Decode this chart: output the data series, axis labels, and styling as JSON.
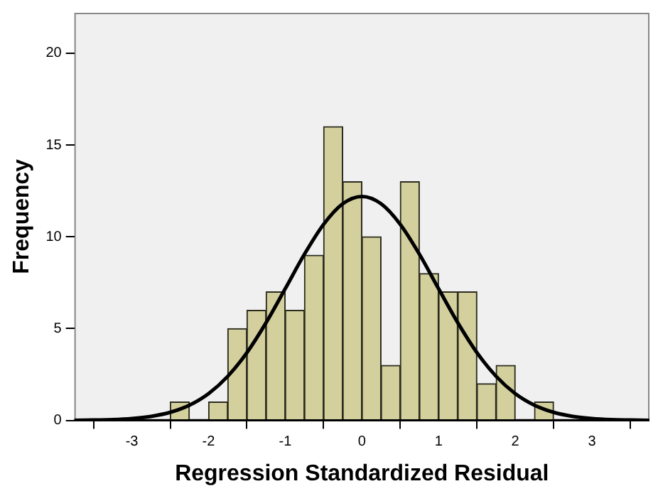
{
  "chart_data": {
    "type": "histogram",
    "xlabel": "Regression Standardized Residual",
    "ylabel": "Frequency",
    "series": [
      {
        "color": "#d4d09e",
        "bins": [
          -2.5,
          -2.25,
          -2,
          -1.75,
          -1.5,
          -1.25,
          -1,
          -0.75,
          -0.5,
          -0.25,
          0,
          0.25,
          0.5,
          0.75,
          1,
          1.25,
          1.5,
          1.75,
          2,
          2.25,
          2.5
        ],
        "values": [
          1,
          0,
          1,
          5,
          6,
          7,
          6,
          9,
          16,
          13,
          10,
          3,
          13,
          8,
          7,
          7,
          2,
          3,
          0,
          1
        ]
      },
      {
        "type": "line",
        "color": "#000000",
        "x": [
          -3.75,
          -3.5,
          -3.25,
          -3,
          -2.75,
          -2.5,
          -2.25,
          -2,
          -1.75,
          -1.5,
          -1.25,
          -1,
          -0.75,
          -0.5,
          -0.25,
          0,
          0.25,
          0.5,
          0.75,
          1,
          1.25,
          1.5,
          1.75,
          2,
          2.25,
          2.5,
          2.75,
          3,
          3.25,
          3.5,
          3.75
        ],
        "values": [
          0,
          0.02,
          0.04,
          0.1,
          0.22,
          0.44,
          0.83,
          1.46,
          2.4,
          3.69,
          5.32,
          7.17,
          9.05,
          10.68,
          11.8,
          12.2,
          11.8,
          10.68,
          9.05,
          7.17,
          5.32,
          3.69,
          2.4,
          1.46,
          0.83,
          0.44,
          0.22,
          0.1,
          0.04,
          0.02,
          0
        ]
      }
    ],
    "xlim": [
      -3.75,
      3.75
    ],
    "xticks": [
      -3,
      -2,
      -1,
      0,
      1,
      2,
      3
    ],
    "ylim": [
      0,
      22.2
    ],
    "yticks": [
      0,
      5,
      10,
      15,
      20
    ],
    "grid": false,
    "legend": false,
    "marker": "none",
    "line_style": "solid"
  }
}
